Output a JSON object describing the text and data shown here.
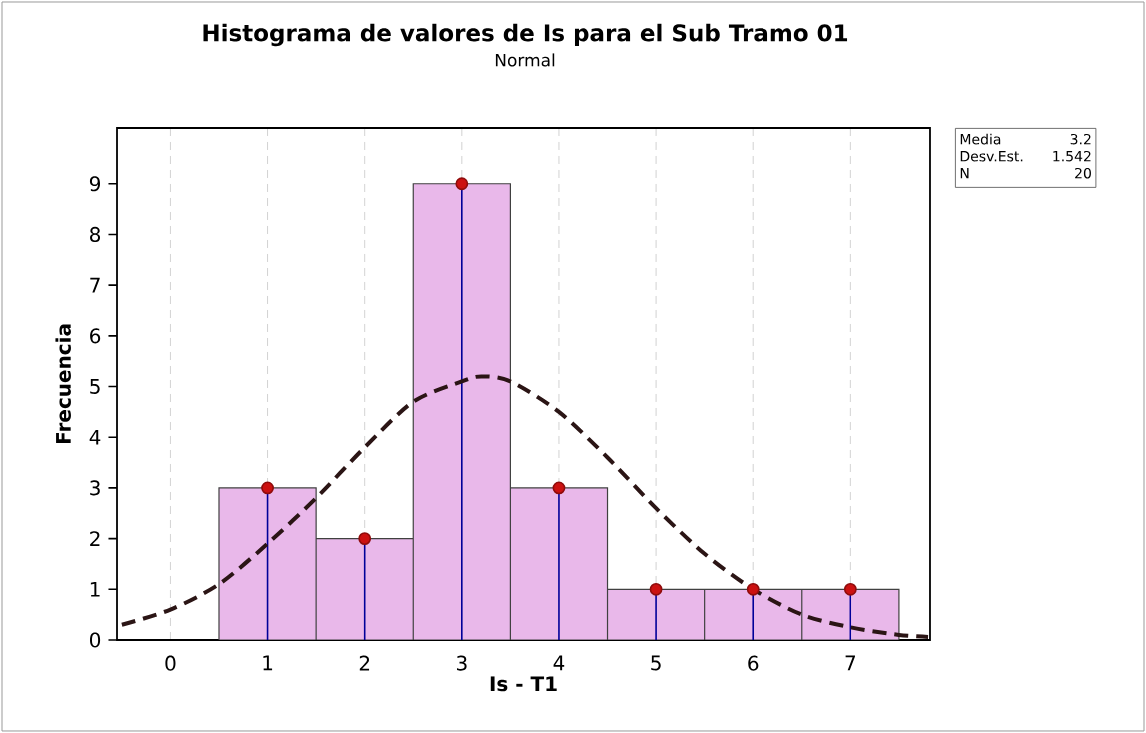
{
  "chart_data": {
    "type": "histogram",
    "title": "Histograma de valores de Is para el Sub Tramo 01",
    "subtitle": "Normal",
    "xlabel": "Is - T1",
    "ylabel": "Frecuencia",
    "xlim": [
      -0.55,
      7.82
    ],
    "ylim": [
      0,
      10.1
    ],
    "xticks": [
      0,
      1,
      2,
      3,
      4,
      5,
      6,
      7
    ],
    "yticks": [
      0,
      1,
      2,
      3,
      4,
      5,
      6,
      7,
      8,
      9
    ],
    "grid": "x",
    "series": [
      {
        "color": "#e9b8ea",
        "bins": [
          0.5,
          1.5,
          2.5,
          3.5,
          4.5,
          5.5,
          6.5,
          7.5
        ],
        "values": [
          3,
          2,
          9,
          3,
          1,
          1,
          1
        ]
      },
      {
        "type": "lollipop",
        "color": "#cc1111",
        "x": [
          1,
          2,
          3,
          4,
          5,
          6,
          7
        ],
        "values": [
          3,
          2,
          9,
          3,
          1,
          1,
          1
        ],
        "marker": "circle"
      },
      {
        "type": "line",
        "color": "#2b1515",
        "line_style": "dashed",
        "x": [
          -0.5,
          0,
          0.5,
          1,
          1.5,
          2,
          2.5,
          3,
          3.2,
          3.5,
          4,
          4.5,
          5,
          5.5,
          6,
          6.5,
          7,
          7.5,
          7.8
        ],
        "values": [
          0.3,
          0.6,
          1.1,
          1.9,
          2.8,
          3.8,
          4.7,
          5.1,
          5.2,
          5.1,
          4.5,
          3.6,
          2.6,
          1.7,
          1.0,
          0.5,
          0.25,
          0.1,
          0.06
        ]
      }
    ],
    "annotations": [
      "Media",
      "3.2",
      "Desv.Est.",
      "1.542",
      "N",
      "20"
    ]
  }
}
